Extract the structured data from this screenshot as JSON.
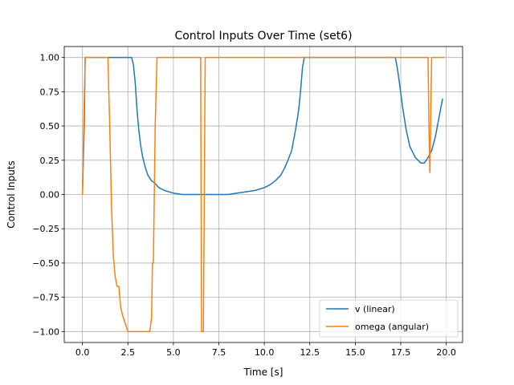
{
  "chart_data": {
    "type": "line",
    "title": "Control Inputs Over Time (set6)",
    "xlabel": "Time [s]",
    "ylabel": "Control Inputs",
    "xlim": [
      -1.0,
      20.9
    ],
    "ylim": [
      -1.08,
      1.08
    ],
    "xticks": [
      0,
      2.5,
      5,
      7.5,
      10,
      12.5,
      15,
      17.5,
      20
    ],
    "xtick_labels": [
      "0.0",
      "2.5",
      "5.0",
      "7.5",
      "10.0",
      "12.5",
      "15.0",
      "17.5",
      "20.0"
    ],
    "yticks": [
      -1.0,
      -0.75,
      -0.5,
      -0.25,
      0.0,
      0.25,
      0.5,
      0.75,
      1.0
    ],
    "ytick_labels": [
      "−1.00",
      "−0.75",
      "−0.50",
      "−0.25",
      "0.00",
      "0.25",
      "0.50",
      "0.75",
      "1.00"
    ],
    "grid": true,
    "legend_position": "lower-right",
    "series": [
      {
        "name": "v (linear)",
        "color": "#1f77b4",
        "x": [
          0.0,
          0.1,
          0.15,
          2.7,
          2.8,
          2.9,
          3.0,
          3.1,
          3.2,
          3.3,
          3.45,
          3.6,
          3.8,
          4.0,
          4.2,
          4.5,
          5.0,
          5.5,
          6.0,
          6.5,
          7.0,
          7.5,
          8.0,
          8.5,
          9.0,
          9.5,
          10.0,
          10.3,
          10.6,
          10.9,
          11.1,
          11.3,
          11.5,
          11.6,
          11.7,
          11.8,
          11.9,
          12.0,
          12.1,
          12.2,
          17.2,
          17.3,
          17.4,
          17.5,
          17.6,
          17.8,
          18.0,
          18.3,
          18.6,
          18.8,
          19.0,
          19.2,
          19.4,
          19.6,
          19.8
        ],
        "y": [
          0.0,
          0.5,
          1.0,
          1.0,
          0.95,
          0.82,
          0.62,
          0.47,
          0.36,
          0.28,
          0.2,
          0.14,
          0.1,
          0.08,
          0.05,
          0.03,
          0.01,
          0.0,
          0.0,
          0.0,
          0.0,
          0.0,
          0.0,
          0.01,
          0.02,
          0.03,
          0.05,
          0.07,
          0.1,
          0.14,
          0.19,
          0.25,
          0.32,
          0.39,
          0.46,
          0.54,
          0.63,
          0.77,
          0.93,
          1.0,
          1.0,
          0.93,
          0.84,
          0.74,
          0.64,
          0.47,
          0.35,
          0.27,
          0.23,
          0.23,
          0.27,
          0.32,
          0.42,
          0.56,
          0.7
        ]
      },
      {
        "name": "omega (angular)",
        "color": "#ff7f0e",
        "x": [
          0.0,
          0.1,
          0.15,
          1.4,
          1.5,
          1.6,
          1.7,
          1.8,
          1.9,
          2.0,
          2.1,
          2.2,
          2.3,
          2.4,
          2.5,
          2.6,
          3.7,
          3.8,
          3.85,
          3.9,
          4.0,
          4.1,
          4.2,
          6.5,
          6.55,
          6.6,
          6.65,
          6.7,
          6.75,
          19.0,
          19.05,
          19.1,
          19.15,
          19.2,
          19.3,
          19.9
        ],
        "y": [
          0.0,
          0.7,
          1.0,
          1.0,
          0.5,
          -0.1,
          -0.45,
          -0.6,
          -0.67,
          -0.67,
          -0.82,
          -0.88,
          -0.92,
          -0.96,
          -1.0,
          -1.0,
          -1.0,
          -0.9,
          -0.5,
          -0.5,
          0.5,
          1.0,
          1.0,
          1.0,
          -1.0,
          -1.0,
          -1.0,
          0.0,
          1.0,
          1.0,
          0.5,
          0.16,
          0.6,
          1.0,
          1.0,
          1.0
        ]
      }
    ]
  }
}
